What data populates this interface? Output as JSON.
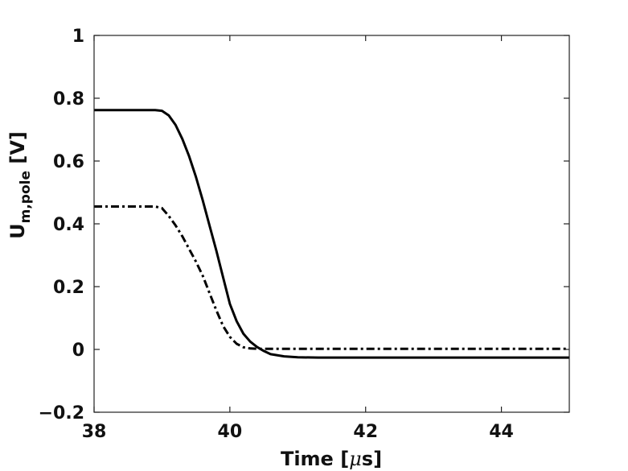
{
  "chart_data": {
    "type": "line",
    "title": "",
    "xlabel_main": "Time [",
    "xlabel_mu": "μ",
    "xlabel_end": "s]",
    "ylabel_main": "U",
    "ylabel_sub": "m,pole",
    "ylabel_end": " [V]",
    "xlim": [
      38,
      45
    ],
    "ylim": [
      -0.2,
      1
    ],
    "xticks": [
      38,
      40,
      42,
      44
    ],
    "yticks": [
      -0.2,
      0,
      0.2,
      0.4,
      0.6,
      0.8,
      1
    ],
    "xtick_labels": [
      "38",
      "40",
      "42",
      "44"
    ],
    "ytick_labels": [
      "−0.2",
      "0",
      "0.2",
      "0.4",
      "0.6",
      "0.8",
      "1"
    ],
    "grid": false,
    "series": [
      {
        "style": "solid",
        "color": "#000000",
        "x": [
          38.0,
          38.9,
          39.0,
          39.1,
          39.2,
          39.3,
          39.4,
          39.5,
          39.6,
          39.7,
          39.8,
          39.9,
          40.0,
          40.1,
          40.2,
          40.3,
          40.4,
          40.5,
          40.6,
          40.8,
          41.0,
          41.3,
          42.0,
          43.0,
          44.0,
          45.0
        ],
        "y": [
          0.762,
          0.762,
          0.76,
          0.745,
          0.715,
          0.67,
          0.615,
          0.55,
          0.475,
          0.395,
          0.315,
          0.23,
          0.145,
          0.09,
          0.05,
          0.025,
          0.008,
          -0.005,
          -0.015,
          -0.022,
          -0.025,
          -0.026,
          -0.026,
          -0.026,
          -0.026,
          -0.026
        ]
      },
      {
        "style": "dashdot",
        "color": "#000000",
        "x": [
          38.0,
          38.9,
          39.0,
          39.1,
          39.2,
          39.3,
          39.4,
          39.5,
          39.6,
          39.7,
          39.8,
          39.9,
          40.0,
          40.1,
          40.2,
          40.3,
          40.4,
          40.6,
          41.0,
          42.0,
          43.0,
          44.0,
          45.0
        ],
        "y": [
          0.455,
          0.455,
          0.45,
          0.425,
          0.395,
          0.36,
          0.32,
          0.28,
          0.235,
          0.18,
          0.125,
          0.075,
          0.04,
          0.018,
          0.007,
          0.003,
          0.002,
          0.002,
          0.002,
          0.002,
          0.002,
          0.002,
          0.002
        ]
      }
    ]
  }
}
